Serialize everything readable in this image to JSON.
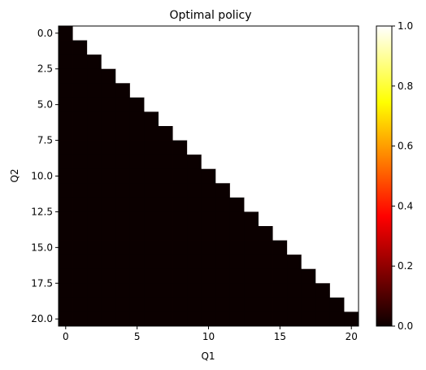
{
  "chart_data": {
    "type": "heatmap",
    "title": "Optimal policy",
    "xlabel": "Q1",
    "ylabel": "Q2",
    "grid_size": 21,
    "x_range": [
      0,
      20
    ],
    "y_range": [
      0,
      20
    ],
    "xticks": [
      0,
      5,
      10,
      15,
      20
    ],
    "xtick_labels": [
      "0",
      "5",
      "10",
      "15",
      "20"
    ],
    "yticks": [
      0.0,
      2.5,
      5.0,
      7.5,
      10.0,
      12.5,
      15.0,
      17.5,
      20.0
    ],
    "ytick_labels": [
      "0.0",
      "2.5",
      "5.0",
      "7.5",
      "10.0",
      "12.5",
      "15.0",
      "17.5",
      "20.0"
    ],
    "colormap": "hot",
    "vmin": 0.0,
    "vmax": 1.0,
    "colorbar_ticks": [
      0.0,
      0.2,
      0.4,
      0.6,
      0.8,
      1.0
    ],
    "colorbar_tick_labels": [
      "0.0",
      "0.2",
      "0.4",
      "0.6",
      "0.8",
      "1.0"
    ],
    "cell_rule": "value 0 where Q1 <= Q2, value 1 where Q1 > Q2",
    "low_value": 0,
    "high_value": 1,
    "colors": {
      "low": "#0b0000",
      "high": "#ffffff"
    }
  }
}
